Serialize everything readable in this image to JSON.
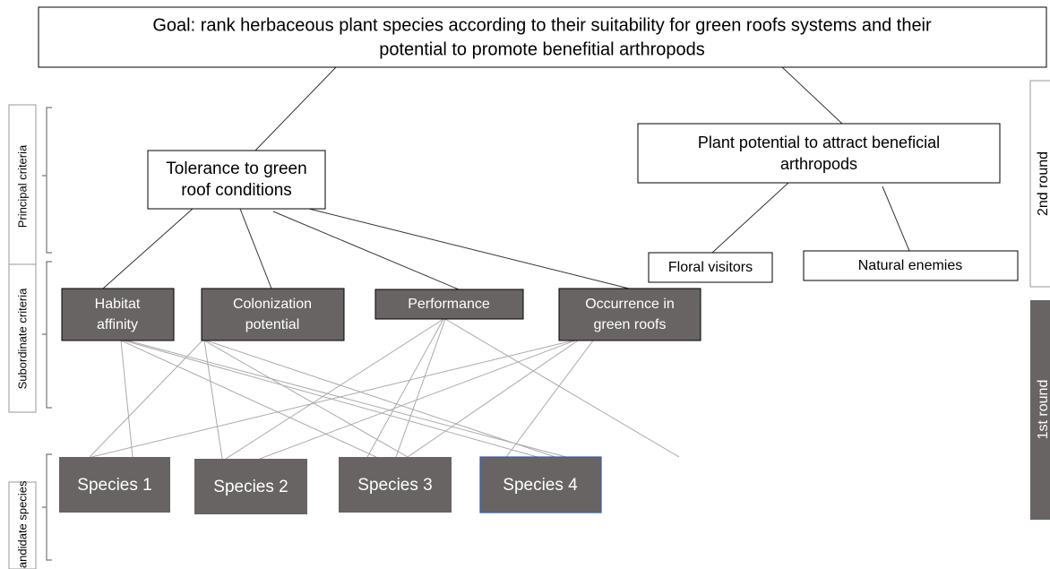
{
  "goal": {
    "lines": [
      "Goal: rank herbaceous plant species according to their suitability for green roofs systems and their",
      "potential to promote benefitial arthropods"
    ]
  },
  "principal": [
    {
      "lines": [
        "Tolerance to green",
        "roof conditions"
      ]
    },
    {
      "lines": [
        "Plant potential to attract beneficial",
        "arthropods"
      ]
    }
  ],
  "arthropods": [
    "Floral visitors",
    "Natural enemies"
  ],
  "subordinate": [
    {
      "lines": [
        "Habitat",
        "affinity"
      ]
    },
    {
      "lines": [
        "Colonization",
        "potential"
      ]
    },
    {
      "lines": [
        "Performance"
      ]
    },
    {
      "lines": [
        "Occurrence in",
        "green roofs"
      ]
    }
  ],
  "species": [
    "Species 1",
    "Species 2",
    "Species 3",
    "Species 4"
  ],
  "levels": [
    "Principal criteria",
    "Subordinate criteria",
    "Candidate species"
  ],
  "rounds": [
    "2nd round",
    "1st round"
  ]
}
